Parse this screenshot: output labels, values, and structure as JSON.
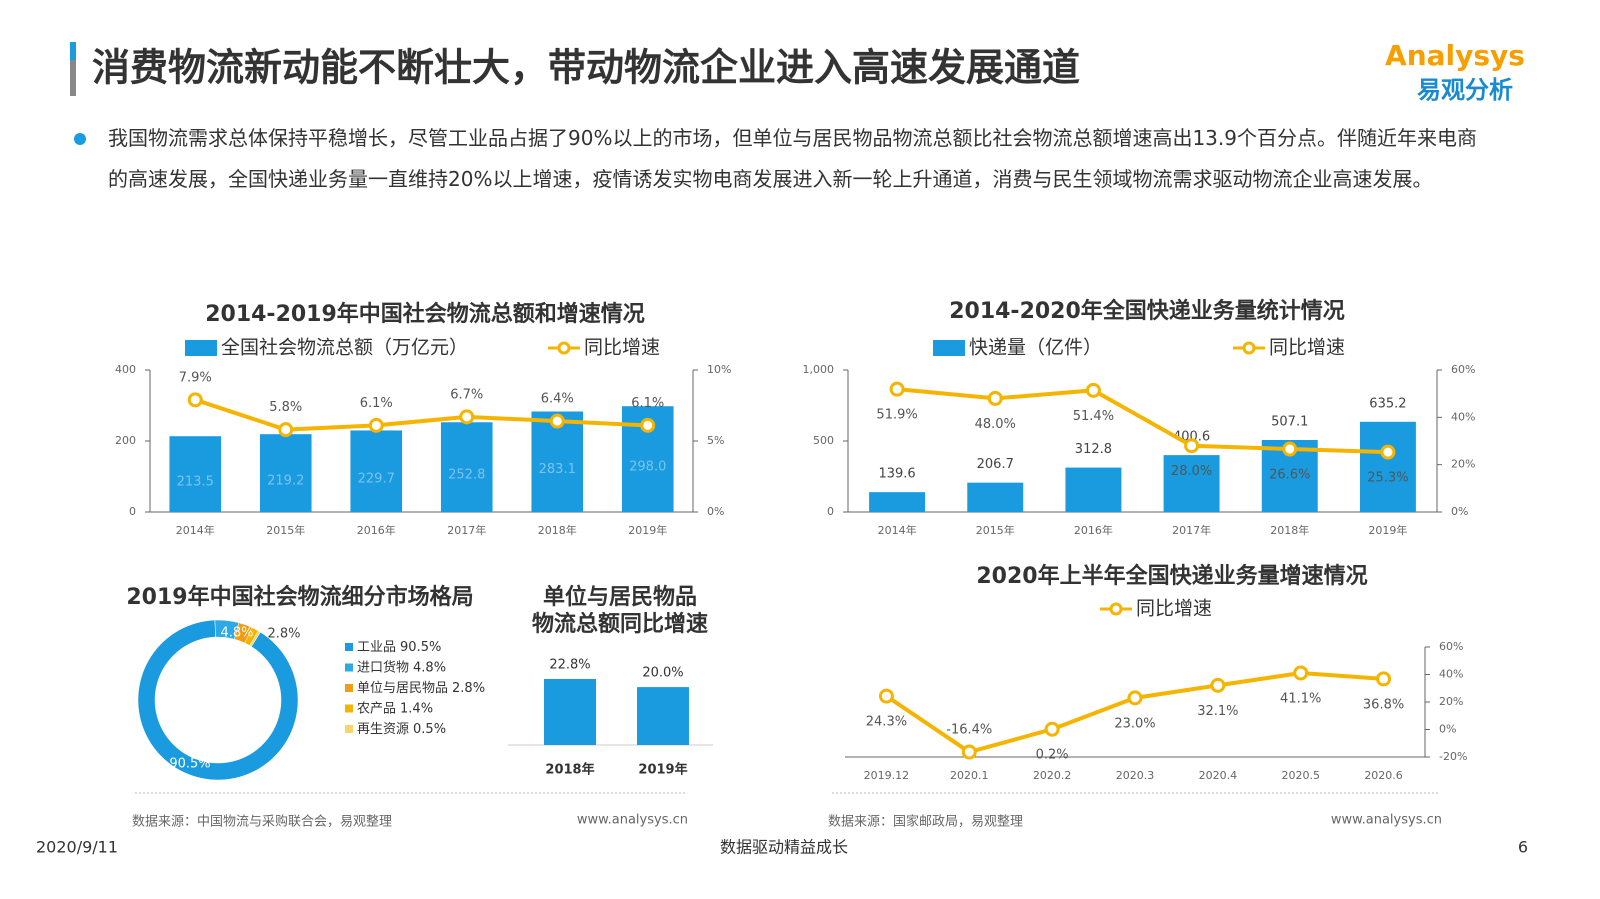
{
  "header": {
    "title": "消费物流新动能不断壮大，带动物流企业进入高速发展通道",
    "logo": "Analysys",
    "logo_cn": "易观分析",
    "bullet": "我国物流需求总体保持平稳增长，尽管工业品占据了90%以上的市场，但单位与居民物品物流总额比社会物流总额增速高出13.9个百分点。伴随近年来电商的高速发展，全国快递业务量一直维持20%以上增速，疫情诱发实物电商发展进入新一轮上升通道，消费与民生领域物流需求驱动物流企业高速发展。"
  },
  "chart_data": [
    {
      "type": "bar_line",
      "title": "2014-2019年中国社会物流总额和增速情况",
      "categories": [
        "2014年",
        "2015年",
        "2016年",
        "2017年",
        "2018年",
        "2019年"
      ],
      "series": [
        {
          "name": "全国社会物流总额（万亿元）",
          "type": "bar",
          "color": "#1a9be0",
          "values": [
            213.5,
            219.2,
            229.7,
            252.8,
            283.1,
            298.0
          ],
          "value_labels": [
            "213.5",
            "219.2",
            "229.7",
            "252.8",
            "283.1",
            "298.0"
          ]
        },
        {
          "name": "同比增速",
          "type": "line",
          "axis": "y2",
          "color": "#f5b400",
          "values": [
            7.9,
            5.8,
            6.1,
            6.7,
            6.4,
            6.1
          ],
          "value_labels": [
            "7.9%",
            "5.8%",
            "6.1%",
            "6.7%",
            "6.4%",
            "6.1%"
          ]
        }
      ],
      "ylim": [
        0,
        400
      ],
      "yticks": [
        0,
        200,
        400
      ],
      "y2lim": [
        0,
        10
      ],
      "y2ticks": [
        {
          "value": 0,
          "label": "0%"
        },
        {
          "value": 5,
          "label": "5%"
        },
        {
          "value": 10,
          "label": "10%"
        }
      ]
    },
    {
      "type": "bar_line",
      "title": "2014-2020年全国快递业务量统计情况",
      "categories": [
        "2014年",
        "2015年",
        "2016年",
        "2017年",
        "2018年",
        "2019年"
      ],
      "series": [
        {
          "name": "快递量（亿件）",
          "type": "bar",
          "color": "#1a9be0",
          "values": [
            139.6,
            206.7,
            312.8,
            400.6,
            507.1,
            635.2
          ]
        },
        {
          "name": "同比增速",
          "type": "line",
          "axis": "y2",
          "color": "#f5b400",
          "values": [
            51.9,
            48.0,
            51.4,
            28.0,
            26.6,
            25.3
          ],
          "value_labels": [
            "51.9%",
            "48.0%",
            "51.4%",
            "28.0%",
            "26.6%",
            "25.3%"
          ]
        }
      ],
      "ylim": [
        0,
        1000
      ],
      "yticks": [
        0,
        500,
        {
          "value": 1000,
          "label": "1,000"
        }
      ],
      "y2lim": [
        0,
        60
      ],
      "y2ticks": [
        {
          "value": 0,
          "label": "0%"
        },
        {
          "value": 20,
          "label": "20%"
        },
        {
          "value": 40,
          "label": "40%"
        },
        {
          "value": 60,
          "label": "60%"
        }
      ]
    },
    {
      "type": "pie",
      "title": "2019年中国社会物流细分市场格局",
      "categories": [
        "工业品",
        "进口货物",
        "单位与居民物品",
        "农产品",
        "再生资源"
      ],
      "values": [
        90.5,
        4.8,
        2.8,
        1.4,
        0.5
      ],
      "value_labels": [
        "90.5%",
        "4.8%",
        "2.8%",
        "1.4%",
        "0.5%"
      ],
      "colors": [
        "#1a9be0",
        "#2fa9e6",
        "#f39c12",
        "#f5b400",
        "#f7d56a"
      ]
    },
    {
      "type": "bar",
      "title": [
        "单位与居民物品",
        "物流总额同比增速"
      ],
      "categories": [
        "2018年",
        "2019年"
      ],
      "values": [
        22.8,
        20.0
      ],
      "value_labels": [
        "22.8%",
        "20.0%"
      ],
      "color": "#1a9be0"
    },
    {
      "type": "line",
      "title": "2020年上半年全国快递业务量增速情况",
      "categories": [
        "2019.12",
        "2020.1",
        "2020.2",
        "2020.3",
        "2020.4",
        "2020.5",
        "2020.6"
      ],
      "series": [
        {
          "name": "同比增速",
          "type": "line",
          "color": "#f5b400",
          "values": [
            24.3,
            -16.4,
            0.2,
            23.0,
            32.1,
            41.1,
            36.8
          ],
          "value_labels": [
            "24.3%",
            "-16.4%",
            "0.2%",
            "23.0%",
            "32.1%",
            "41.1%",
            "36.8%"
          ]
        }
      ],
      "ylim": [
        -20,
        60
      ],
      "yticks": [
        {
          "value": -20,
          "label": "-20%"
        },
        {
          "value": 0,
          "label": "0%"
        },
        {
          "value": 20,
          "label": "20%"
        },
        {
          "value": 40,
          "label": "40%"
        },
        {
          "value": 60,
          "label": "60%"
        }
      ]
    }
  ],
  "footer": {
    "left_source": "数据来源：中国物流与采购联合会，易观整理",
    "left_url": "www.analysys.cn",
    "right_source": "数据来源：国家邮政局，易观整理",
    "right_url": "www.analysys.cn",
    "date": "2020/9/11",
    "slogan": "数据驱动精益成长",
    "page": "6"
  }
}
